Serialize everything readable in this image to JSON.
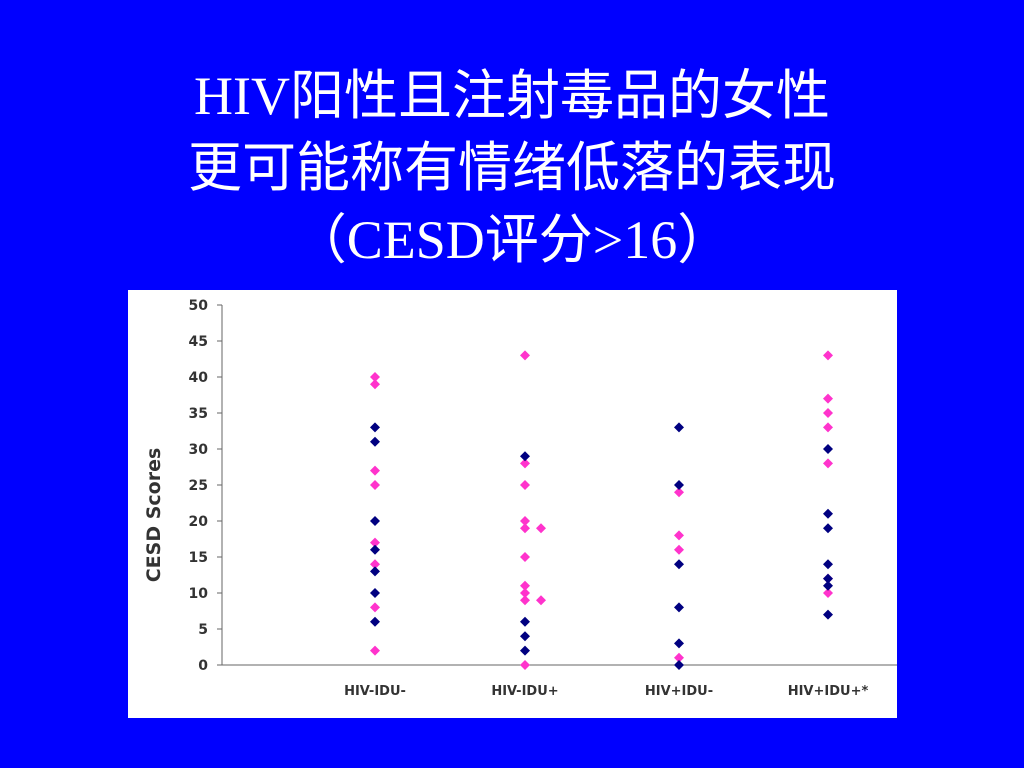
{
  "slide": {
    "title_lines": [
      "HIV阳性且注射毒品的女性",
      "更可能称有情绪低落的表现",
      "（CESD评分>16）"
    ]
  },
  "chart_data": {
    "type": "scatter",
    "title": "",
    "xlabel": "",
    "ylabel": "CESD Scores",
    "ylim": [
      0,
      50
    ],
    "yticks": [
      0,
      5,
      10,
      15,
      20,
      25,
      30,
      35,
      40,
      45,
      50
    ],
    "grid": false,
    "legend": "none",
    "categories": [
      "HIV-IDU-",
      "HIV-IDU+",
      "HIV+IDU-",
      "HIV+IDU+*"
    ],
    "series": [
      {
        "color": "#ff33cc",
        "points": [
          {
            "x": "HIV-IDU-",
            "y": 40
          },
          {
            "x": "HIV-IDU-",
            "y": 39
          },
          {
            "x": "HIV-IDU-",
            "y": 27
          },
          {
            "x": "HIV-IDU-",
            "y": 25
          },
          {
            "x": "HIV-IDU-",
            "y": 17
          },
          {
            "x": "HIV-IDU-",
            "y": 14
          },
          {
            "x": "HIV-IDU-",
            "y": 8
          },
          {
            "x": "HIV-IDU-",
            "y": 2
          },
          {
            "x": "HIV-IDU+",
            "y": 43
          },
          {
            "x": "HIV-IDU+",
            "y": 28
          },
          {
            "x": "HIV-IDU+",
            "y": 25
          },
          {
            "x": "HIV-IDU+",
            "y": 20
          },
          {
            "x": "HIV-IDU+",
            "y": 19
          },
          {
            "x": "HIV-IDU+",
            "y": 19
          },
          {
            "x": "HIV-IDU+",
            "y": 15
          },
          {
            "x": "HIV-IDU+",
            "y": 11
          },
          {
            "x": "HIV-IDU+",
            "y": 10
          },
          {
            "x": "HIV-IDU+",
            "y": 9
          },
          {
            "x": "HIV-IDU+",
            "y": 9
          },
          {
            "x": "HIV-IDU+",
            "y": 0
          },
          {
            "x": "HIV+IDU-",
            "y": 24
          },
          {
            "x": "HIV+IDU-",
            "y": 18
          },
          {
            "x": "HIV+IDU-",
            "y": 16
          },
          {
            "x": "HIV+IDU-",
            "y": 1
          },
          {
            "x": "HIV+IDU+*",
            "y": 43
          },
          {
            "x": "HIV+IDU+*",
            "y": 37
          },
          {
            "x": "HIV+IDU+*",
            "y": 35
          },
          {
            "x": "HIV+IDU+*",
            "y": 33
          },
          {
            "x": "HIV+IDU+*",
            "y": 28
          },
          {
            "x": "HIV+IDU+*",
            "y": 12
          },
          {
            "x": "HIV+IDU+*",
            "y": 10
          }
        ]
      },
      {
        "color": "#000080",
        "points": [
          {
            "x": "HIV-IDU-",
            "y": 33
          },
          {
            "x": "HIV-IDU-",
            "y": 31
          },
          {
            "x": "HIV-IDU-",
            "y": 20
          },
          {
            "x": "HIV-IDU-",
            "y": 16
          },
          {
            "x": "HIV-IDU-",
            "y": 13
          },
          {
            "x": "HIV-IDU-",
            "y": 10
          },
          {
            "x": "HIV-IDU-",
            "y": 6
          },
          {
            "x": "HIV-IDU+",
            "y": 29
          },
          {
            "x": "HIV-IDU+",
            "y": 6
          },
          {
            "x": "HIV-IDU+",
            "y": 4
          },
          {
            "x": "HIV-IDU+",
            "y": 2
          },
          {
            "x": "HIV+IDU-",
            "y": 33
          },
          {
            "x": "HIV+IDU-",
            "y": 25
          },
          {
            "x": "HIV+IDU-",
            "y": 14
          },
          {
            "x": "HIV+IDU-",
            "y": 8
          },
          {
            "x": "HIV+IDU-",
            "y": 3
          },
          {
            "x": "HIV+IDU-",
            "y": 0
          },
          {
            "x": "HIV+IDU+*",
            "y": 30
          },
          {
            "x": "HIV+IDU+*",
            "y": 21
          },
          {
            "x": "HIV+IDU+*",
            "y": 19
          },
          {
            "x": "HIV+IDU+*",
            "y": 14
          },
          {
            "x": "HIV+IDU+*",
            "y": 12
          },
          {
            "x": "HIV+IDU+*",
            "y": 11
          },
          {
            "x": "HIV+IDU+*",
            "y": 7
          }
        ]
      }
    ]
  }
}
